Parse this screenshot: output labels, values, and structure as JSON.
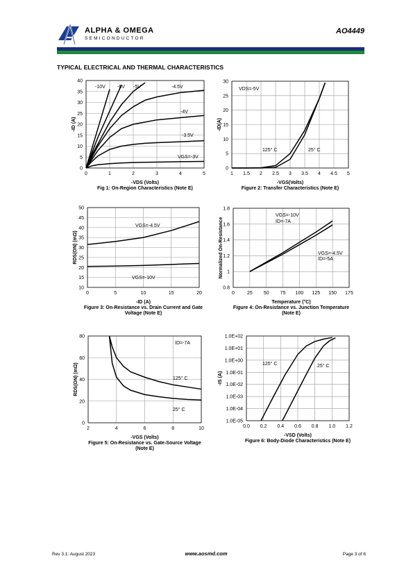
{
  "header": {
    "brand": "ALPHA & OMEGA",
    "brand_sub": "SEMICONDUCTOR",
    "part": "AO4449"
  },
  "section_title": "TYPICAL ELECTRICAL AND THERMAL CHARACTERISTICS",
  "chart_data": [
    {
      "type": "line",
      "grid": true,
      "x_label": "-VDS (Volts)",
      "y_label": "-ID (A)",
      "caption": [
        "Fig 1: On-Region Characteristics (Note E)"
      ],
      "xlim": [
        0,
        5
      ],
      "xticks": [
        0,
        1,
        2,
        3,
        4,
        5
      ],
      "ylim": [
        0,
        40
      ],
      "yticks": [
        0,
        5,
        10,
        15,
        20,
        25,
        30,
        35,
        40
      ],
      "x": [
        0,
        0.25,
        0.5,
        1,
        1.5,
        2,
        2.5,
        3,
        4,
        5
      ],
      "series": [
        {
          "name": "-10V",
          "color": "#000000",
          "values": [
            0,
            9,
            18,
            36,
            null,
            null,
            null,
            null,
            null,
            null
          ]
        },
        {
          "name": "-6V",
          "color": "#000000",
          "values": [
            0,
            7,
            14,
            26,
            38,
            null,
            null,
            null,
            null,
            null
          ]
        },
        {
          "name": "-5V",
          "color": "#000000",
          "values": [
            0,
            6,
            11,
            21,
            29,
            35,
            39,
            null,
            null,
            null
          ]
        },
        {
          "name": "-4.5V",
          "color": "#000000",
          "values": [
            0,
            5,
            10,
            18,
            24,
            28,
            31,
            32.5,
            34.5,
            35.5
          ]
        },
        {
          "name": "-4V",
          "color": "#000000",
          "values": [
            0,
            4,
            8,
            14,
            18,
            20,
            21,
            22,
            23,
            24
          ]
        },
        {
          "name": "-3.5V",
          "color": "#000000",
          "values": [
            0,
            3,
            5.5,
            8.5,
            10,
            10.8,
            11.3,
            11.6,
            12,
            12.5
          ]
        },
        {
          "name": "VGS=-3V",
          "color": "#000000",
          "values": [
            0,
            1,
            1.5,
            2,
            2.3,
            2.5,
            2.6,
            2.7,
            2.9,
            3
          ]
        }
      ],
      "annotations": []
    },
    {
      "type": "line",
      "grid": true,
      "x_label": "-VGS(Volts)",
      "y_label": "-ID(A)",
      "caption": [
        "Figure 2: Transfer Characteristics (Note E)"
      ],
      "xlim": [
        1,
        5
      ],
      "xticks": [
        1,
        1.5,
        2,
        2.5,
        3,
        3.5,
        4,
        4.5,
        5
      ],
      "ylim": [
        0,
        30
      ],
      "yticks": [
        0,
        5,
        10,
        15,
        20,
        25,
        30
      ],
      "x": [
        1,
        1.5,
        2,
        2.5,
        3,
        3.5,
        4,
        4.2
      ],
      "series": [
        {
          "name": "125° C",
          "color": "#000000",
          "values": [
            0,
            0,
            0.1,
            0.8,
            5,
            13,
            24,
            29.5
          ]
        },
        {
          "name": "25° C",
          "color": "#000000",
          "values": [
            0,
            0,
            0,
            0.2,
            3,
            11.5,
            24,
            29.5
          ]
        }
      ],
      "annotations": [
        "VDS=-5V"
      ]
    },
    {
      "type": "line",
      "grid": true,
      "x_label": "-ID (A)",
      "y_label": "RDS(ON) (mΩ)",
      "caption": [
        "Figure 3: On-Resistance vs. Drain Current and Gate",
        "Voltage (Note E)"
      ],
      "xlim": [
        0,
        20
      ],
      "xticks": [
        0,
        5,
        10,
        15,
        20
      ],
      "ylim": [
        10,
        50
      ],
      "yticks": [
        10,
        15,
        20,
        25,
        30,
        35,
        40,
        45,
        50
      ],
      "x": [
        0,
        5,
        10,
        15,
        20
      ],
      "series": [
        {
          "name": "VGS=-4.5V",
          "color": "#000000",
          "values": [
            31.5,
            33,
            35,
            38.5,
            43
          ]
        },
        {
          "name": "VGS=-10V",
          "color": "#000000",
          "values": [
            20.5,
            20.7,
            21,
            21.5,
            22
          ]
        }
      ],
      "annotations": []
    },
    {
      "type": "line",
      "grid": true,
      "x_label": "Temperature (°C)",
      "y_label": "Normalized On-Resistance",
      "caption": [
        "Figure 4: On-Resistance vs. Junction Temperature",
        "(Note E)"
      ],
      "xlim": [
        0,
        175
      ],
      "xticks": [
        0,
        25,
        50,
        75,
        100,
        125,
        150,
        175
      ],
      "ylim": [
        0.8,
        1.8
      ],
      "yticks": [
        0.8,
        1,
        1.2,
        1.4,
        1.6,
        1.8
      ],
      "x": [
        25,
        50,
        75,
        100,
        125,
        150
      ],
      "series": [
        {
          "name": "VGS=-10V",
          "color": "#000000",
          "values": [
            1,
            1.12,
            1.24,
            1.37,
            1.5,
            1.64
          ]
        },
        {
          "name": "VGS=-4.5V",
          "color": "#000000",
          "values": [
            1,
            1.11,
            1.22,
            1.34,
            1.46,
            1.59
          ]
        }
      ],
      "annotations": [
        "ID=-7A",
        "ID=-5A"
      ]
    },
    {
      "type": "line",
      "grid": true,
      "x_label": "-VGS (Volts)",
      "y_label": "RDS(ON) (mΩ)",
      "caption": [
        "Figure 5: On-Resistance vs. Gate-Source Voltage",
        "(Note E)"
      ],
      "xlim": [
        2,
        10
      ],
      "xticks": [
        2,
        4,
        6,
        8,
        10
      ],
      "ylim": [
        0,
        80
      ],
      "yticks": [
        0,
        20,
        40,
        60,
        80
      ],
      "x": [
        3.5,
        3.7,
        4,
        4.5,
        5,
        6,
        7,
        8,
        9,
        10
      ],
      "series": [
        {
          "name": "125° C",
          "color": "#000000",
          "values": [
            80,
            70,
            60,
            52,
            47,
            42,
            38,
            35,
            33,
            31
          ]
        },
        {
          "name": "25° C",
          "color": "#000000",
          "values": [
            80,
            55,
            42,
            34,
            30,
            26,
            24,
            22.5,
            21.5,
            21
          ]
        }
      ],
      "annotations": [
        "ID=-7A"
      ]
    },
    {
      "type": "line",
      "grid": true,
      "log_y": true,
      "x_label": "-VSD (Volts)",
      "y_label": "-IS (A)",
      "caption": [
        "Figure 6: Body-Diode Characteristics (Note E)"
      ],
      "xlim": [
        0,
        1.2
      ],
      "xticks": [
        {
          "value": 0,
          "label": "0.0"
        },
        0.2,
        0.4,
        0.6,
        0.8,
        {
          "value": 1,
          "label": "1.0"
        },
        1.2
      ],
      "ylim": [
        1e-05,
        100
      ],
      "yticks": [
        {
          "value": 1e-05,
          "label": "1.0E-05"
        },
        {
          "value": 0.0001,
          "label": "1.0E-04"
        },
        {
          "value": 0.001,
          "label": "1.0E-03"
        },
        {
          "value": 0.01,
          "label": "1.0E-02"
        },
        {
          "value": 0.1,
          "label": "1.0E-01"
        },
        {
          "value": 1,
          "label": "1.0E+00"
        },
        {
          "value": 10,
          "label": "1.0E+01"
        },
        {
          "value": 100,
          "label": "1.0E+02"
        }
      ],
      "series": [
        {
          "name": "125° C",
          "color": "#000000",
          "x": [
            0.17,
            0.3,
            0.45,
            0.6,
            0.7,
            0.8,
            0.9,
            1.0
          ],
          "values": [
            1e-05,
            0.0006,
            0.06,
            3,
            15,
            35,
            55,
            75
          ]
        },
        {
          "name": "25° C",
          "color": "#000000",
          "x": [
            0.42,
            0.55,
            0.7,
            0.8,
            0.9,
            0.97,
            1.04
          ],
          "values": [
            1e-05,
            0.0006,
            0.07,
            1.5,
            15,
            40,
            70
          ]
        }
      ],
      "annotations": []
    }
  ],
  "footer": {
    "revision": "Rev 3.1: August 2023",
    "website": "www.aosmd.com",
    "page": "Page 3 of 6"
  }
}
